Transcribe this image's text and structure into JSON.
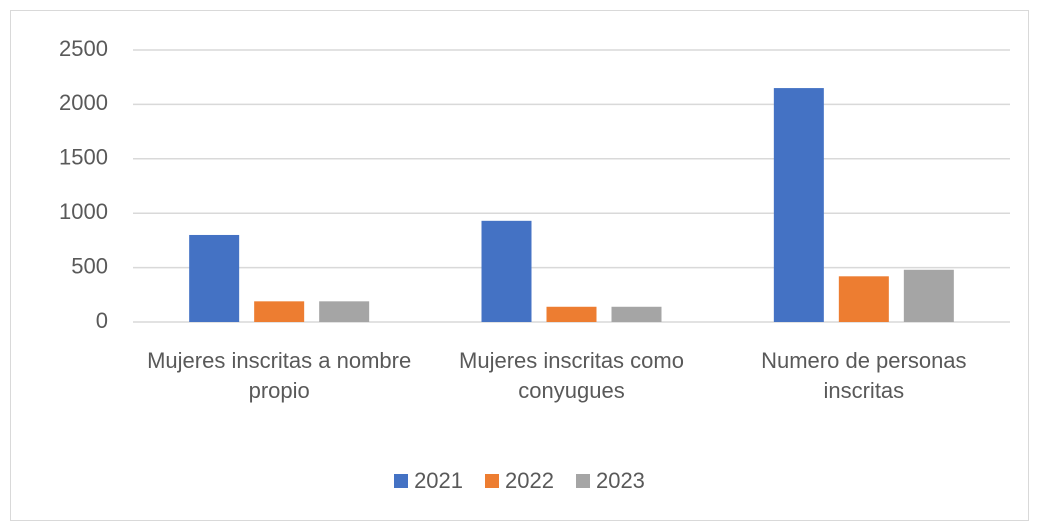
{
  "chart_data": {
    "type": "bar",
    "categories": [
      "Mujeres inscritas a nombre propio",
      "Mujeres inscritas como conyugues",
      "Numero de personas inscritas"
    ],
    "series": [
      {
        "name": "2021",
        "color": "#4472c4",
        "values": [
          800,
          930,
          2150
        ]
      },
      {
        "name": "2022",
        "color": "#ed7d31",
        "values": [
          190,
          140,
          420
        ]
      },
      {
        "name": "2023",
        "color": "#a5a5a5",
        "values": [
          190,
          140,
          480
        ]
      }
    ],
    "ylim": [
      0,
      2500
    ],
    "yticks": [
      0,
      500,
      1000,
      1500,
      2000,
      2500
    ],
    "grid": true,
    "legend": "bottom"
  }
}
